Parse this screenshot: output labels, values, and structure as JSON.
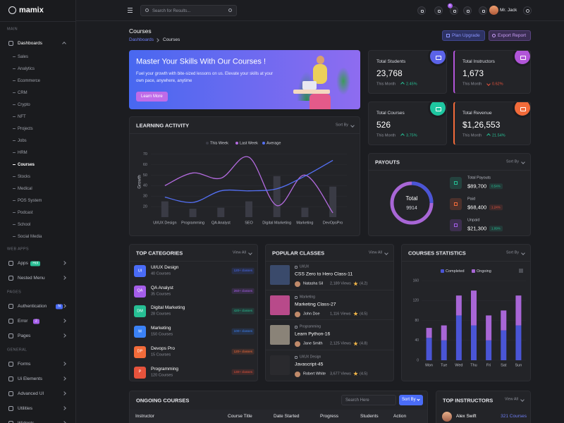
{
  "sidebar": {
    "logo": "mamix",
    "sections": [
      {
        "label": "MAIN",
        "items": [
          {
            "label": "Dashboards",
            "children": [
              {
                "label": "Sales"
              },
              {
                "label": "Analytics"
              },
              {
                "label": "Ecommerce"
              },
              {
                "label": "CRM"
              },
              {
                "label": "Crypto"
              },
              {
                "label": "NFT"
              },
              {
                "label": "Projects"
              },
              {
                "label": "Jobs"
              },
              {
                "label": "HRM"
              },
              {
                "label": "Courses",
                "active": true
              },
              {
                "label": "Stocks"
              },
              {
                "label": "Medical"
              },
              {
                "label": "POS System"
              },
              {
                "label": "Podcast"
              },
              {
                "label": "School"
              },
              {
                "label": "Social Media"
              }
            ]
          }
        ]
      },
      {
        "label": "WEB APPS",
        "items": [
          {
            "label": "Apps",
            "badge": "Hot",
            "badge_color": "#26bf94"
          },
          {
            "label": "Nested Menu"
          }
        ]
      },
      {
        "label": "PAGES",
        "items": [
          {
            "label": "Authentication",
            "badge": "N",
            "badge_color": "#4a6cf7"
          },
          {
            "label": "Error",
            "badge": "2",
            "badge_color": "#a55eea"
          },
          {
            "label": "Pages"
          }
        ]
      },
      {
        "label": "GENERAL",
        "items": [
          {
            "label": "Forms"
          },
          {
            "label": "Ui Elements"
          },
          {
            "label": "Advanced UI"
          },
          {
            "label": "Utilities"
          },
          {
            "label": "Widgets"
          }
        ]
      }
    ]
  },
  "header": {
    "search_placeholder": "Search for Results...",
    "cart_badge": "5",
    "user": "Mr. Jack"
  },
  "page_header": {
    "title": "Courses",
    "breadcrumb": [
      "Dashboards",
      "Courses"
    ],
    "buttons": [
      "Plan Upgrade",
      "Export Report"
    ]
  },
  "banner": {
    "title": "Master Your Skills With Our Courses !",
    "text": "Fuel your growth with bite-sized lessons on us. Elevate your skills at your own pace, anywhere, anytime",
    "button": "Learn More"
  },
  "stats": [
    {
      "label": "Total Students",
      "value": "23,768",
      "period": "This Month",
      "change": "2.45%",
      "trend": "up",
      "color": "#5b63e8"
    },
    {
      "label": "Total Instructors",
      "value": "1,673",
      "period": "This Month",
      "change": "0.62%",
      "trend": "down",
      "color": "#b155d9"
    },
    {
      "label": "Total Courses",
      "value": "526",
      "period": "This Month",
      "change": "3.75%",
      "trend": "up",
      "color": "#1ec6a0"
    },
    {
      "label": "Total Revenue",
      "value": "$1,26,553",
      "period": "This Month",
      "change": "21.54%",
      "trend": "up",
      "color": "#f26b3a"
    }
  ],
  "learning_activity": {
    "title": "LEARNING ACTIVITY",
    "sort": "Sort By",
    "chart": {
      "type": "bar-line",
      "y_label": "Growth",
      "categories": [
        "UI/UX Design",
        "Programming",
        "QA Analyst",
        "SEO",
        "Digital Marketing",
        "Marketing",
        "DevOpsPro"
      ],
      "ylim": [
        10,
        77
      ],
      "yticks": [
        20,
        30,
        40,
        50,
        60,
        70
      ],
      "grid": true,
      "series": [
        {
          "name": "This Week",
          "kind": "bar",
          "color": "#3a3b45",
          "values": [
            25,
            18,
            19,
            25,
            49,
            19,
            39
          ]
        },
        {
          "name": "Last Week",
          "kind": "line",
          "color": "#b46be0",
          "values": [
            40,
            52,
            47,
            67,
            21,
            50,
            14
          ]
        },
        {
          "name": "Average",
          "kind": "line",
          "color": "#5470f5",
          "values": [
            29,
            24,
            35,
            35,
            37,
            49,
            64
          ]
        }
      ]
    }
  },
  "payouts": {
    "title": "PAYOUTS",
    "sort": "Sort By",
    "total_label": "Total",
    "total": "9914",
    "items": [
      {
        "label": "Total Payouts",
        "value": "$89,700",
        "change": "0.54%",
        "trend": "up",
        "color": "#26bf94"
      },
      {
        "label": "Paid",
        "value": "$68,400",
        "change": "1.24%",
        "trend": "down",
        "color": "#f26b3a"
      },
      {
        "label": "Unpaid",
        "value": "$21,300",
        "change": "1.09%",
        "trend": "up",
        "color": "#a55eea"
      }
    ]
  },
  "top_categories": {
    "title": "TOP CATEGORIES",
    "view_all": "View All",
    "items": [
      {
        "icon": "UI",
        "name": "UI/UX Design",
        "courses": "40 Courses",
        "classes": "120+ classes",
        "color": "#4a6cf7"
      },
      {
        "icon": "QA",
        "name": "QA Analyst",
        "courses": "35 Courses",
        "classes": "260+ classes",
        "color": "#a55eea"
      },
      {
        "icon": "DM",
        "name": "Digital Marketing",
        "courses": "28 Courses",
        "classes": "420+ classes",
        "color": "#26bf94"
      },
      {
        "icon": "M",
        "name": "Marketing",
        "courses": "150 Courses",
        "classes": "100+ classes",
        "color": "#3b82f6"
      },
      {
        "icon": "DP",
        "name": "Devops Pro",
        "courses": "15 Courses",
        "classes": "120+ classes",
        "color": "#f26b3a"
      },
      {
        "icon": "P",
        "name": "Programming",
        "courses": "120 Courses",
        "classes": "130+ classes",
        "color": "#e6533c"
      }
    ]
  },
  "popular_classes": {
    "title": "POPULAR CLASSES",
    "view_all": "View All",
    "items": [
      {
        "category": "UI/UX",
        "title": "CSS Zero to Hero Class-11",
        "author": "Natasha Sil",
        "views": "2,189 Views",
        "rating": "(4.2)",
        "thumb": "#3a4a6b"
      },
      {
        "category": "Marketing",
        "title": "Marketing Class-27",
        "author": "John Doe",
        "views": "1,116 Views",
        "rating": "(4.5)",
        "thumb": "#b84a8a"
      },
      {
        "category": "Programming",
        "title": "Learn Python-16",
        "author": "Jane Smith",
        "views": "2,125 Views",
        "rating": "(4.8)",
        "thumb": "#8a8378"
      },
      {
        "category": "UI/UX Design",
        "title": "Javascript-45",
        "author": "Robert White",
        "views": "3,677 Views",
        "rating": "(4.5)",
        "thumb": "#2a2a2e"
      }
    ]
  },
  "course_statistics": {
    "title": "COURSES STATISTICS",
    "sort": "Sort By",
    "chart": {
      "type": "stacked-bar",
      "categories": [
        "Mon",
        "Tue",
        "Wed",
        "Thu",
        "Fri",
        "Sat",
        "Sun"
      ],
      "ylim": [
        0,
        160
      ],
      "yticks": [
        0,
        40,
        80,
        120,
        160
      ],
      "grid": true,
      "series": [
        {
          "name": "Completed",
          "color": "#4a55d6",
          "values": [
            45,
            40,
            90,
            70,
            40,
            60,
            70
          ]
        },
        {
          "name": "Ongoing",
          "color": "#a866d6",
          "values": [
            20,
            30,
            40,
            70,
            50,
            40,
            60
          ]
        }
      ]
    }
  },
  "ongoing_courses": {
    "title": "ONGOING COURSES",
    "search": "Search Here",
    "sort": "Sort By",
    "columns": [
      "Instructor",
      "Course Title",
      "Date Started",
      "Progress",
      "Students",
      "Action"
    ]
  },
  "top_instructors": {
    "title": "TOP INSTRUCTORS",
    "view_all": "View All",
    "items": [
      {
        "name": "Alex Swift",
        "courses": "321 Courses"
      }
    ]
  }
}
